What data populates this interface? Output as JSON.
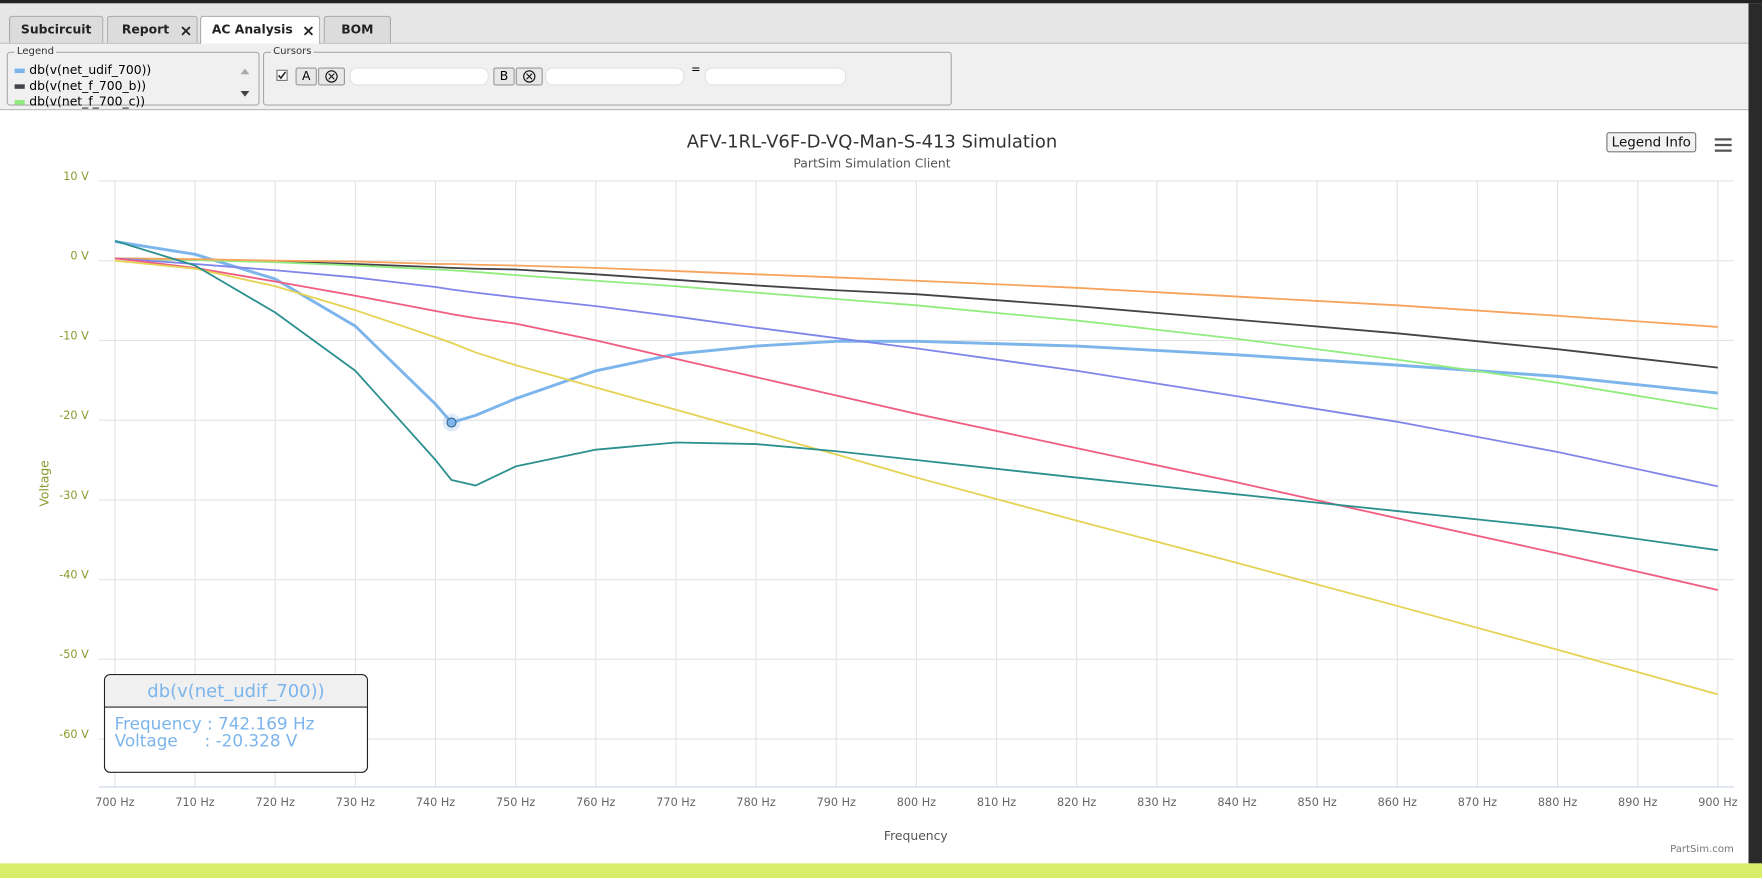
{
  "tabs": [
    "Subcircuit",
    "Report",
    "AC Analysis",
    "BOM"
  ],
  "legend_panel": {
    "title": "Legend"
  },
  "cursors": {
    "title": "Cursors",
    "a": "A",
    "b": "B",
    "eq": "="
  },
  "chart_data": {
    "type": "line",
    "title": "AFV-1RL-V6F-D-VQ-Man-S-413 Simulation",
    "subtitle": "PartSim Simulation Client",
    "legend_button": "Legend Info",
    "x_label": "Frequency",
    "y_label": "Voltage",
    "credits": "PartSim.com",
    "grid": true,
    "xlim": [
      698,
      902
    ],
    "ylim": [
      -66,
      10
    ],
    "xticks": [
      {
        "value": 700,
        "label": "700 Hz"
      },
      {
        "value": 710,
        "label": "710 Hz"
      },
      {
        "value": 720,
        "label": "720 Hz"
      },
      {
        "value": 730,
        "label": "730 Hz"
      },
      {
        "value": 740,
        "label": "740 Hz"
      },
      {
        "value": 750,
        "label": "750 Hz"
      },
      {
        "value": 760,
        "label": "760 Hz"
      },
      {
        "value": 770,
        "label": "770 Hz"
      },
      {
        "value": 780,
        "label": "780 Hz"
      },
      {
        "value": 790,
        "label": "790 Hz"
      },
      {
        "value": 800,
        "label": "800 Hz"
      },
      {
        "value": 810,
        "label": "810 Hz"
      },
      {
        "value": 820,
        "label": "820 Hz"
      },
      {
        "value": 830,
        "label": "830 Hz"
      },
      {
        "value": 840,
        "label": "840 Hz"
      },
      {
        "value": 850,
        "label": "850 Hz"
      },
      {
        "value": 860,
        "label": "860 Hz"
      },
      {
        "value": 870,
        "label": "870 Hz"
      },
      {
        "value": 880,
        "label": "880 Hz"
      },
      {
        "value": 890,
        "label": "890 Hz"
      },
      {
        "value": 900,
        "label": "900 Hz"
      }
    ],
    "yticks": [
      {
        "value": 10,
        "label": "10 V"
      },
      {
        "value": 0,
        "label": "0 V"
      },
      {
        "value": -10,
        "label": "-10 V"
      },
      {
        "value": -20,
        "label": "-20 V"
      },
      {
        "value": -30,
        "label": "-30 V"
      },
      {
        "value": -40,
        "label": "-40 V"
      },
      {
        "value": -50,
        "label": "-50 V"
      },
      {
        "value": -60,
        "label": "-60 V"
      }
    ],
    "x": [
      700,
      710,
      720,
      730,
      740,
      742,
      745,
      750,
      760,
      770,
      780,
      790,
      800,
      820,
      840,
      860,
      880,
      900
    ],
    "series": [
      {
        "name": "db(v(net_udif_700))",
        "color": "#7cb5ec",
        "values": [
          2.4,
          0.8,
          -2.3,
          -8.2,
          -18,
          -20.3,
          -19.4,
          -17.3,
          -13.8,
          -11.7,
          -10.7,
          -10.1,
          -10.1,
          -10.7,
          -11.8,
          -13.1,
          -14.5,
          -16.6
        ]
      },
      {
        "name": "db(v(net_f_700_b))",
        "color": "#434348",
        "values": [
          0.3,
          0.1,
          -0.1,
          -0.4,
          -0.8,
          -0.9,
          -1,
          -1.1,
          -1.7,
          -2.4,
          -3.1,
          -3.7,
          -4.2,
          -5.7,
          -7.4,
          -9.1,
          -11.1,
          -13.4
        ]
      },
      {
        "name": "db(v(net_f_700_c))",
        "color": "#90ed7d",
        "values": [
          0.3,
          0.1,
          -0.2,
          -0.6,
          -1.1,
          -1.2,
          -1.4,
          -1.8,
          -2.5,
          -3.2,
          -4,
          -4.8,
          -5.6,
          -7.5,
          -9.8,
          -12.4,
          -15.3,
          -18.6
        ]
      },
      {
        "color": "#f7a35c",
        "values": [
          0.3,
          0.2,
          0,
          -0.1,
          -0.4,
          -0.4,
          -0.5,
          -0.6,
          -0.9,
          -1.3,
          -1.7,
          -2.1,
          -2.5,
          -3.4,
          -4.5,
          -5.6,
          -6.9,
          -8.3
        ]
      },
      {
        "color": "#8085e9",
        "values": [
          0.3,
          -0.4,
          -1.2,
          -2.1,
          -3.3,
          -3.6,
          -4,
          -4.6,
          -5.7,
          -7,
          -8.4,
          -9.7,
          -11,
          -13.8,
          -17,
          -20.2,
          -24,
          -28.3
        ]
      },
      {
        "color": "#f15c80",
        "values": [
          0.3,
          -0.9,
          -2.6,
          -4.4,
          -6.3,
          -6.7,
          -7.2,
          -7.9,
          -10,
          -12.3,
          -14.6,
          -16.9,
          -19.2,
          -23.5,
          -27.8,
          -32.3,
          -36.7,
          -41.3
        ]
      },
      {
        "color": "#e4d354",
        "values": [
          0,
          -1,
          -3.2,
          -6.2,
          -9.6,
          -10.3,
          -11.5,
          -13.1,
          -15.9,
          -18.7,
          -21.5,
          -24.3,
          -27.2,
          -32.6,
          -37.9,
          -43.3,
          -48.8,
          -54.4
        ]
      },
      {
        "color": "#2b908f",
        "values": [
          2.5,
          -0.6,
          -6.5,
          -13.8,
          -25,
          -27.5,
          -28.2,
          -25.8,
          -23.7,
          -22.8,
          -23,
          -23.9,
          -25,
          -27.2,
          -29.3,
          -31.4,
          -33.5,
          -36.3
        ]
      }
    ],
    "tooltip": {
      "series": 0,
      "point": 5,
      "title": "db(v(net_udif_700))",
      "lines": [
        "Frequency : 742.169 Hz",
        "Voltage     : -20.328 V"
      ]
    }
  }
}
